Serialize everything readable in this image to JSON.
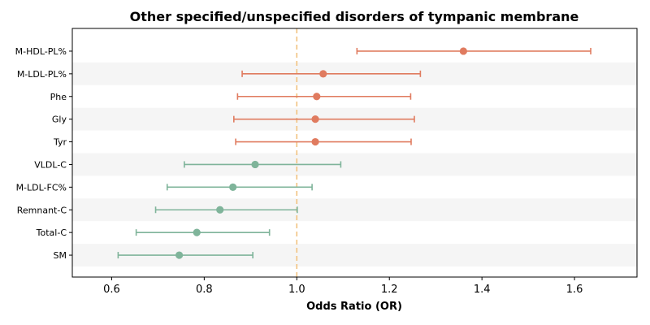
{
  "chart_data": {
    "type": "forest",
    "title": "Other specified/unspecified disorders of tympanic membrane",
    "xlabel": "Odds Ratio (OR)",
    "xlim": [
      0.515,
      1.735
    ],
    "xticks": [
      "0.6",
      "0.8",
      "1.0",
      "1.2",
      "1.4",
      "1.6"
    ],
    "reference_line": 1.0,
    "grid": false,
    "colors": {
      "risk": "#e07b5f",
      "protective": "#7fb49a",
      "reference": "#f2c27f",
      "band": "#f5f5f5"
    },
    "rows": [
      {
        "label": "M-HDL-PL%",
        "or": 1.36,
        "lower": 1.13,
        "upper": 1.635,
        "group": "risk"
      },
      {
        "label": "M-LDL-PL%",
        "or": 1.057,
        "lower": 0.882,
        "upper": 1.267,
        "group": "risk"
      },
      {
        "label": "Phe",
        "or": 1.043,
        "lower": 0.872,
        "upper": 1.246,
        "group": "risk"
      },
      {
        "label": "Gly",
        "or": 1.04,
        "lower": 0.864,
        "upper": 1.254,
        "group": "risk"
      },
      {
        "label": "Tyr",
        "or": 1.04,
        "lower": 0.868,
        "upper": 1.247,
        "group": "risk"
      },
      {
        "label": "VLDL-C",
        "or": 0.91,
        "lower": 0.757,
        "upper": 1.095,
        "group": "protective"
      },
      {
        "label": "M-LDL-FC%",
        "or": 0.862,
        "lower": 0.72,
        "upper": 1.033,
        "group": "protective"
      },
      {
        "label": "Remnant-C",
        "or": 0.834,
        "lower": 0.695,
        "upper": 1.001,
        "group": "protective"
      },
      {
        "label": "Total-C",
        "or": 0.784,
        "lower": 0.653,
        "upper": 0.941,
        "group": "protective"
      },
      {
        "label": "SM",
        "or": 0.746,
        "lower": 0.614,
        "upper": 0.905,
        "group": "protective"
      }
    ]
  }
}
